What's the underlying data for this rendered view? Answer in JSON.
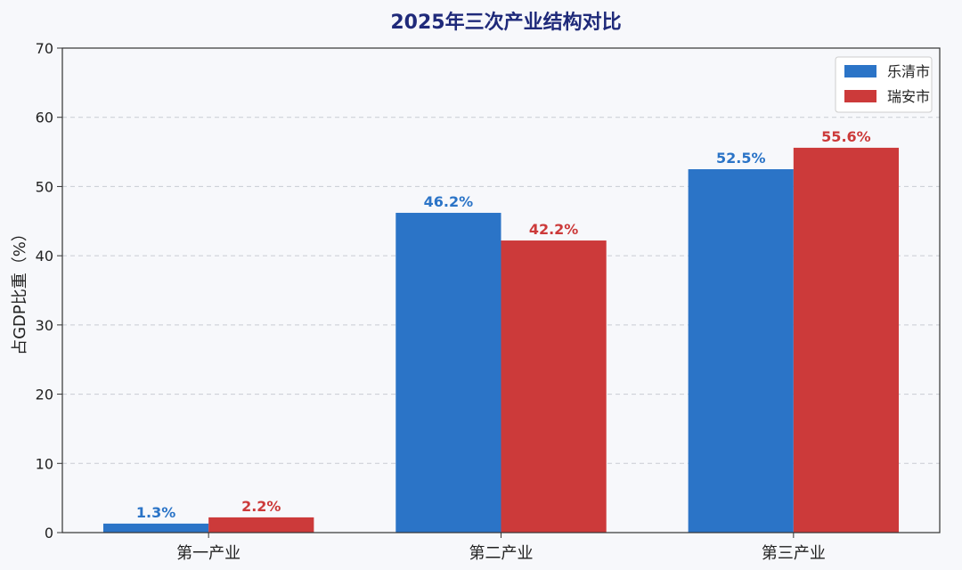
{
  "chart_data": {
    "type": "bar",
    "title": "2025年三次产业结构对比",
    "title_color": "#1f2a7a",
    "xlabel": "",
    "ylabel": "占GDP比重（%）",
    "categories": [
      "第一产业",
      "第二产业",
      "第三产业"
    ],
    "series": [
      {
        "name": "乐清市",
        "color": "#2b74c7",
        "values": [
          1.3,
          46.2,
          52.5
        ],
        "labels": [
          "1.3%",
          "46.2%",
          "52.5%"
        ]
      },
      {
        "name": "瑞安市",
        "color": "#cc3a3a",
        "values": [
          2.2,
          42.2,
          55.6
        ],
        "labels": [
          "2.2%",
          "42.2%",
          "55.6%"
        ]
      }
    ],
    "ylim": [
      0,
      70
    ],
    "yticks": [
      0,
      10,
      20,
      30,
      40,
      50,
      60,
      70
    ],
    "grid": true,
    "legend_position": "top-right"
  }
}
